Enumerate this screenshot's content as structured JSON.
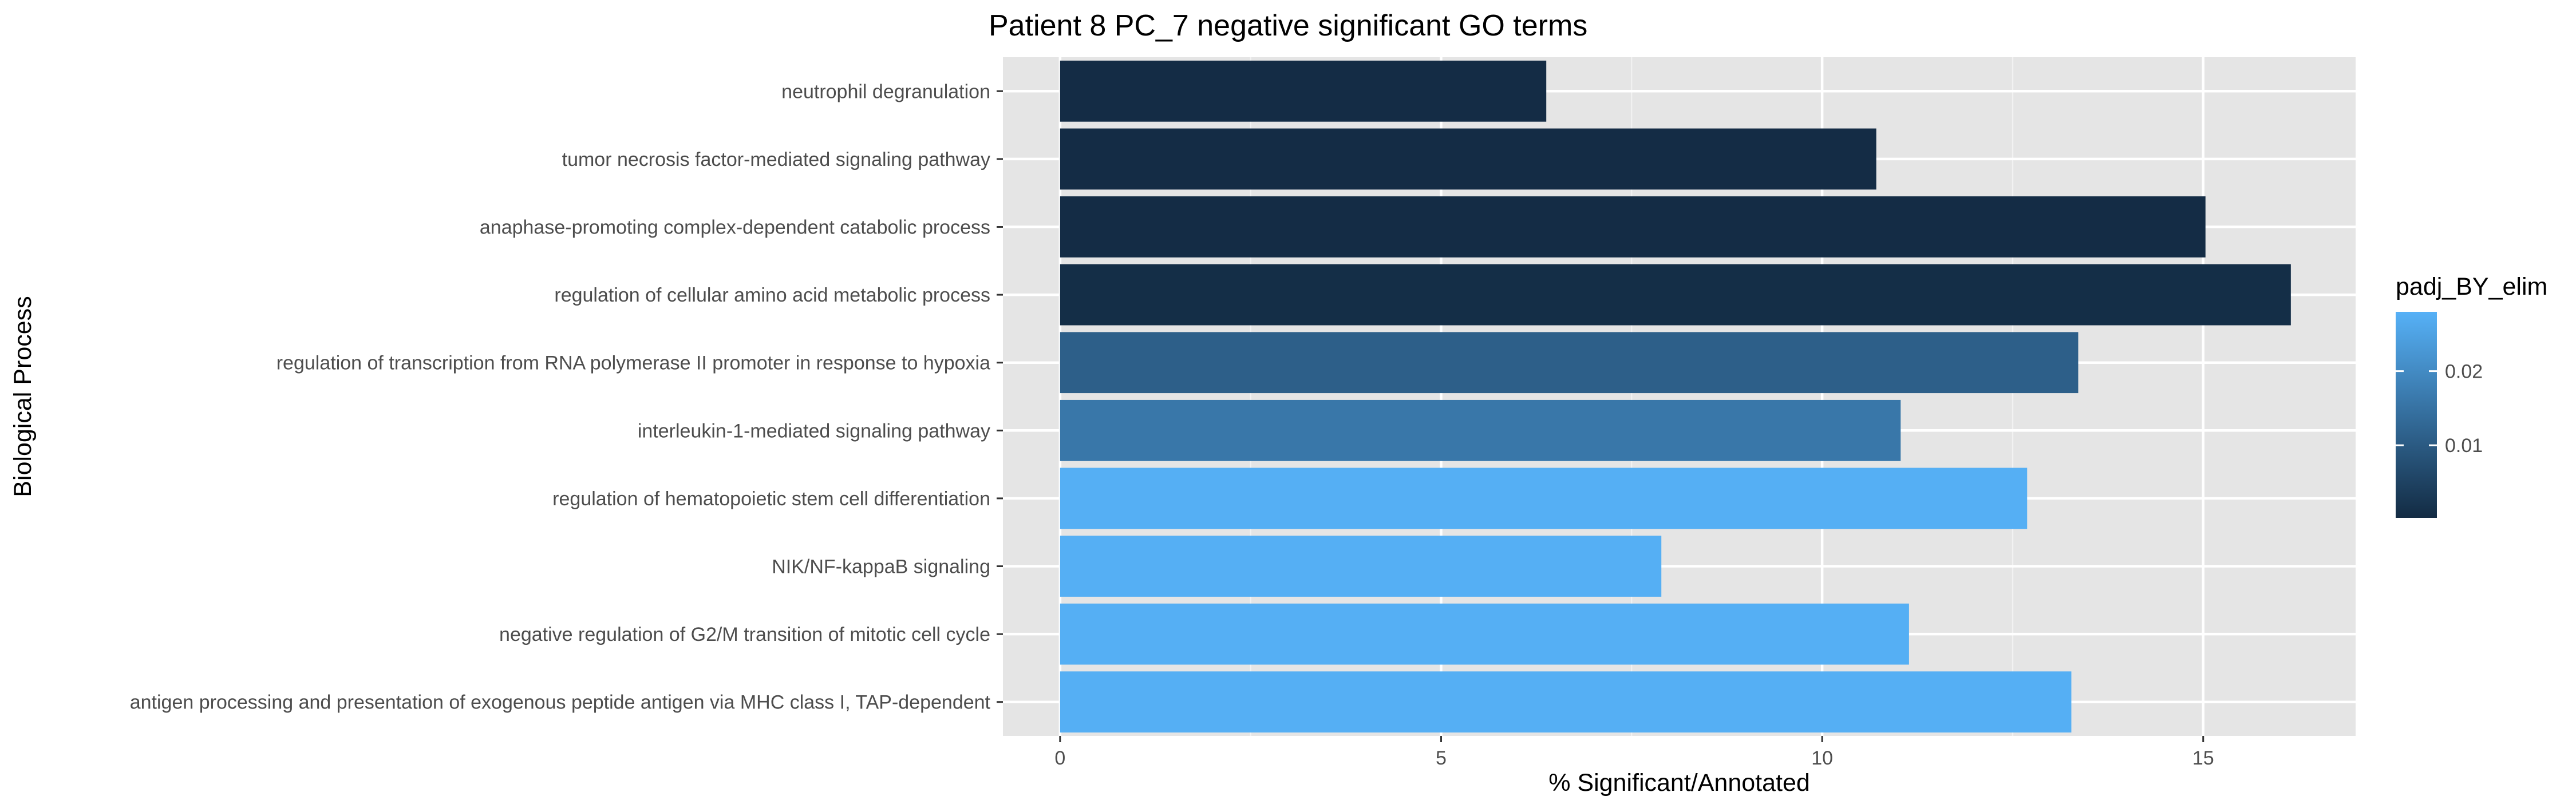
{
  "chart_data": {
    "type": "bar",
    "orientation": "horizontal",
    "title": "Patient 8 PC_7 negative significant GO terms",
    "xlabel": "% Significant/Annotated",
    "ylabel": "Biological Process",
    "xlim": [
      -0.75,
      17
    ],
    "xticks": [
      0,
      5,
      10,
      15
    ],
    "xtick_labels": [
      "0",
      "5",
      "10",
      "15"
    ],
    "grid": true,
    "categories": [
      "neutrophil degranulation",
      "tumor necrosis factor-mediated signaling pathway",
      "anaphase-promoting complex-dependent catabolic process",
      "regulation of cellular amino acid metabolic process",
      "regulation of transcription from RNA polymerase II promoter in response to hypoxia",
      "interleukin-1-mediated signaling pathway",
      "regulation of hematopoietic stem cell differentiation",
      "NIK/NF-kappaB signaling",
      "negative regulation of G2/M transition of mitotic cell cycle",
      "antigen processing and presentation of exogenous peptide antigen via MHC class I, TAP-dependent"
    ],
    "values": [
      6.38,
      10.71,
      15.03,
      16.15,
      13.36,
      11.03,
      12.69,
      7.89,
      11.14,
      13.27
    ],
    "fill_values": [
      0.0005,
      0.0005,
      0.0005,
      0.0008,
      0.011,
      0.016,
      0.0275,
      0.0275,
      0.0275,
      0.0275
    ],
    "legend": {
      "title": "padj_BY_elim",
      "placement": "right",
      "range": [
        0.0002,
        0.028
      ],
      "ticks": [
        0.01,
        0.02
      ],
      "tick_labels": [
        "0.01",
        "0.02"
      ],
      "colors": [
        "#132b43",
        "#56b1f7"
      ]
    }
  }
}
